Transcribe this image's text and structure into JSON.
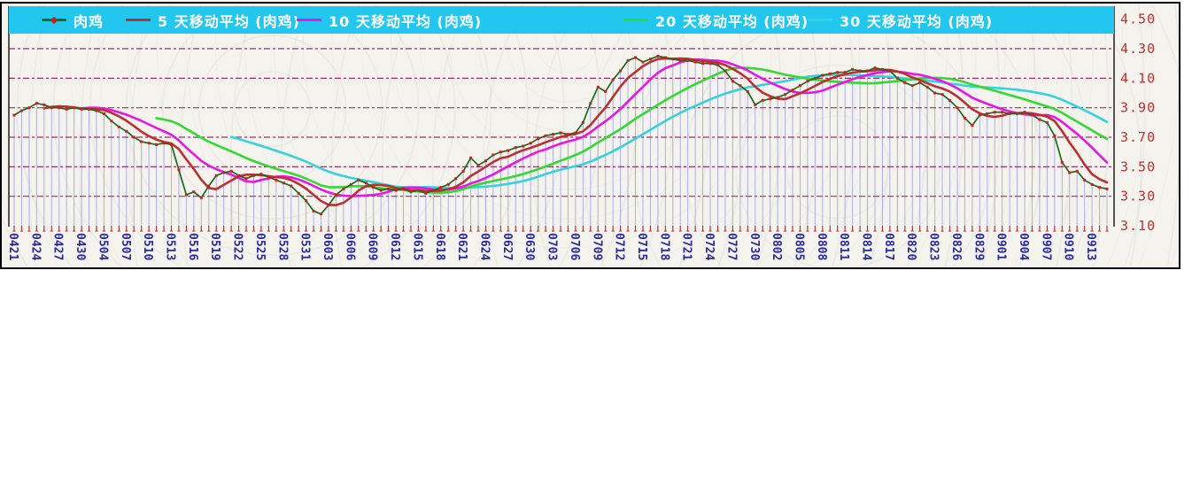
{
  "colors": {
    "legend_bg": "#22c7ef",
    "legend_text": "#ffffff",
    "plot_bg": "#f4f3ee",
    "frame": "#000000",
    "gridline": "#993366",
    "drop_line": "#aab0e6",
    "tick": "#bb3333",
    "x_label": "#2a2a99",
    "y_label": "#c03030"
  },
  "chart_data": {
    "type": "line",
    "title": "",
    "xlabel": "",
    "ylabel": "",
    "ylim": [
      3.1,
      4.5
    ],
    "yticks": [
      "4.50",
      "4.30",
      "4.10",
      "3.90",
      "3.70",
      "3.50",
      "3.30",
      "3.10"
    ],
    "grid": "horizontal-dashed",
    "legend_position": "top-band",
    "label_step": 3,
    "categories": [
      "0421",
      "0424",
      "0427",
      "0430",
      "0504",
      "0507",
      "0510",
      "0513",
      "0516",
      "0519",
      "0522",
      "0525",
      "0528",
      "0531",
      "0603",
      "0606",
      "0609",
      "0612",
      "0615",
      "0618",
      "0621",
      "0624",
      "0627",
      "0630",
      "0703",
      "0706",
      "0709",
      "0712",
      "0715",
      "0718",
      "0721",
      "0724",
      "0727",
      "0730",
      "0802",
      "0805",
      "0808",
      "0811",
      "0814",
      "0817",
      "0820",
      "0823",
      "0826",
      "0829",
      "0901",
      "0904",
      "0907",
      "0910",
      "0913"
    ],
    "values": [
      3.85,
      3.88,
      3.9,
      3.93,
      3.92,
      3.9,
      3.9,
      3.89,
      3.9,
      3.89,
      3.89,
      3.88,
      3.86,
      3.81,
      3.77,
      3.74,
      3.7,
      3.67,
      3.66,
      3.65,
      3.66,
      3.65,
      3.48,
      3.31,
      3.33,
      3.29,
      3.37,
      3.44,
      3.46,
      3.47,
      3.44,
      3.42,
      3.44,
      3.45,
      3.43,
      3.41,
      3.39,
      3.37,
      3.32,
      3.27,
      3.2,
      3.18,
      3.24,
      3.31,
      3.35,
      3.38,
      3.41,
      3.39,
      3.36,
      3.34,
      3.35,
      3.34,
      3.35,
      3.33,
      3.34,
      3.32,
      3.34,
      3.36,
      3.38,
      3.42,
      3.47,
      3.56,
      3.51,
      3.54,
      3.58,
      3.6,
      3.61,
      3.63,
      3.64,
      3.66,
      3.69,
      3.71,
      3.72,
      3.73,
      3.72,
      3.73,
      3.8,
      3.93,
      4.04,
      4.01,
      4.09,
      4.15,
      4.22,
      4.24,
      4.21,
      4.23,
      4.25,
      4.24,
      4.23,
      4.22,
      4.22,
      4.21,
      4.2,
      4.2,
      4.19,
      4.15,
      4.08,
      4.05,
      4.01,
      3.92,
      3.95,
      3.96,
      3.97,
      3.99,
      4.02,
      4.05,
      4.08,
      4.1,
      4.12,
      4.13,
      4.14,
      4.14,
      4.16,
      4.15,
      4.15,
      4.17,
      4.16,
      4.15,
      4.1,
      4.07,
      4.05,
      4.07,
      4.04,
      4.0,
      3.99,
      3.95,
      3.9,
      3.83,
      3.78,
      3.85,
      3.86,
      3.87,
      3.87,
      3.86,
      3.86,
      3.87,
      3.85,
      3.82,
      3.8,
      3.71,
      3.53,
      3.46,
      3.47,
      3.41,
      3.38,
      3.36,
      3.35
    ],
    "series": [
      {
        "name": "肉鸡",
        "type": "price",
        "color": "#1a6a1a",
        "marker_color": "#c22222"
      },
      {
        "name": "5 天移动平均 (肉鸡)",
        "type": "sma",
        "window": 5,
        "color": "#bb3030"
      },
      {
        "name": "10 天移动平均 (肉鸡)",
        "type": "sma",
        "window": 10,
        "color": "#e616e6"
      },
      {
        "name": "20 天移动平均 (肉鸡)",
        "type": "sma",
        "window": 20,
        "color": "#33d833"
      },
      {
        "name": "30 天移动平均 (肉鸡)",
        "type": "sma",
        "window": 30,
        "color": "#36d2dc"
      }
    ]
  }
}
